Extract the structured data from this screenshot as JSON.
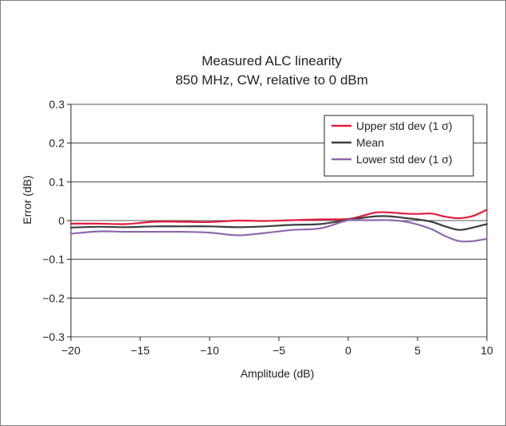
{
  "chart_data": {
    "type": "line",
    "title": "Measured ALC linearity",
    "subtitle": "850 MHz, CW, relative to 0 dBm",
    "xlabel": "Amplitude (dB)",
    "ylabel": "Error (dB)",
    "xlim": [
      -20,
      10
    ],
    "ylim": [
      -0.3,
      0.3
    ],
    "xticks": [
      -20,
      -15,
      -10,
      -5,
      0,
      5,
      10
    ],
    "yticks": [
      -0.3,
      -0.2,
      -0.1,
      0,
      0.1,
      0.2,
      0.3
    ],
    "xtick_labels": [
      "−20",
      "−15",
      "−10",
      "−5",
      "0",
      "5",
      "10"
    ],
    "ytick_labels": [
      "−0.3",
      "−0.2",
      "−0.1",
      "0",
      "0.1",
      "0.2",
      "0.3"
    ],
    "grid": "horizontal",
    "legend_position": "top-right",
    "series": [
      {
        "name": "Upper std dev (1 σ)",
        "color": "#e31b3c",
        "x": [
          -20,
          -18,
          -16,
          -14,
          -12,
          -10,
          -8,
          -6,
          -4,
          -2,
          0,
          1,
          2,
          3,
          4,
          5,
          6,
          7,
          8,
          9,
          10
        ],
        "y": [
          -0.008,
          -0.008,
          -0.009,
          -0.003,
          -0.003,
          -0.004,
          0.0,
          -0.001,
          0.001,
          0.003,
          0.004,
          0.012,
          0.021,
          0.021,
          0.018,
          0.017,
          0.018,
          0.01,
          0.006,
          0.012,
          0.028
        ]
      },
      {
        "name": "Mean",
        "color": "#3d3d3d",
        "x": [
          -20,
          -18,
          -16,
          -14,
          -12,
          -10,
          -8,
          -6,
          -4,
          -2,
          0,
          1,
          2,
          3,
          4,
          5,
          6,
          7,
          8,
          9,
          10
        ],
        "y": [
          -0.018,
          -0.016,
          -0.017,
          -0.015,
          -0.015,
          -0.015,
          -0.017,
          -0.015,
          -0.011,
          -0.009,
          0.002,
          0.007,
          0.011,
          0.011,
          0.007,
          0.003,
          -0.003,
          -0.015,
          -0.024,
          -0.018,
          -0.009
        ]
      },
      {
        "name": "Lower std dev (1 σ)",
        "color": "#8e68ad",
        "x": [
          -20,
          -18,
          -16,
          -14,
          -12,
          -10,
          -8,
          -6,
          -4,
          -2,
          0,
          1,
          2,
          3,
          4,
          5,
          6,
          7,
          8,
          9,
          10
        ],
        "y": [
          -0.034,
          -0.028,
          -0.029,
          -0.029,
          -0.029,
          -0.031,
          -0.038,
          -0.032,
          -0.024,
          -0.02,
          0.001,
          0.001,
          0.001,
          0.001,
          -0.002,
          -0.01,
          -0.022,
          -0.04,
          -0.053,
          -0.053,
          -0.047
        ]
      }
    ]
  }
}
